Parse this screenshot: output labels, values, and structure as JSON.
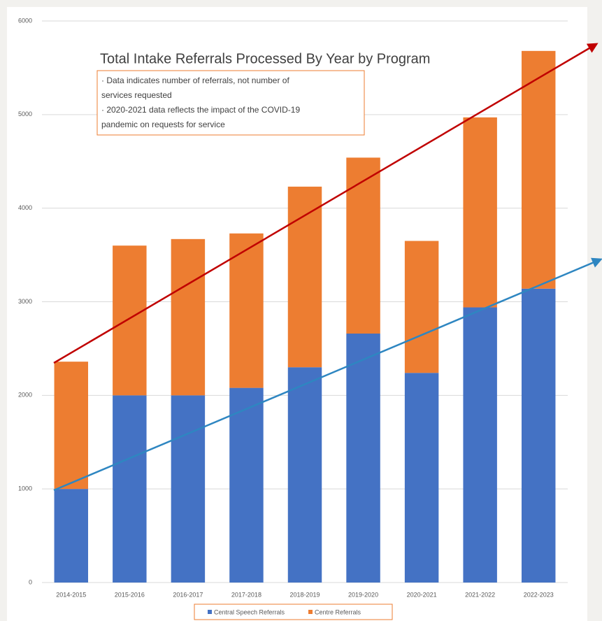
{
  "chart_data": {
    "type": "stacked_bar",
    "title": "Total Intake Referrals Processed By Year by Program",
    "annotations": [
      "· Data indicates number of referrals, not number of",
      "services requested",
      "· 2020-2021 data reflects the impact of the COVID-19",
      "pandemic on requests for service"
    ],
    "categories": [
      "2014-2015",
      "2015-2016",
      "2016-2017",
      "2017-2018",
      "2018-2019",
      "2019-2020",
      "2020-2021",
      "2021-2022",
      "2022-2023"
    ],
    "series": [
      {
        "name": "Central Speech Referrals",
        "color": "#4472c4",
        "values": [
          1000,
          2000,
          2000,
          2080,
          2300,
          2660,
          2240,
          2940,
          3140
        ]
      },
      {
        "name": "Centre Referrals",
        "color": "#ed7d31",
        "values": [
          1360,
          1600,
          1670,
          1650,
          1930,
          1880,
          1410,
          2030,
          2540
        ]
      }
    ],
    "ylim": [
      0,
      6000
    ],
    "yticks": [
      0,
      1000,
      2000,
      3000,
      4000,
      5000,
      6000
    ],
    "grid": true
  }
}
